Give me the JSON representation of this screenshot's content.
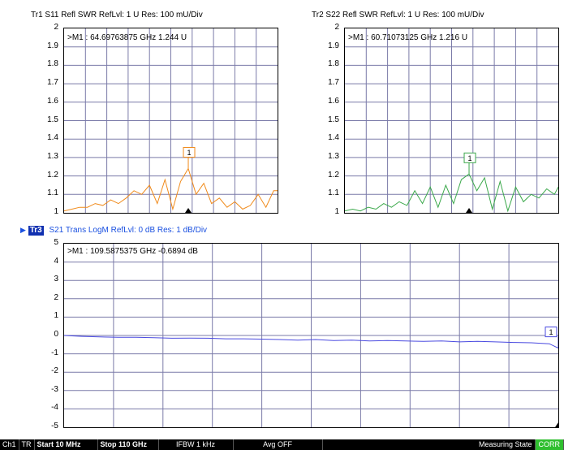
{
  "traces": {
    "tr1": {
      "title": "Tr1   S11 Refl SWR RefLvl: 1  U Res: 100 mU/Div",
      "marker": ">M1  :   64.69763875 GHz  1.244  U",
      "marker_label": "1",
      "color": "#f08a1a",
      "y_ticks": [
        "2",
        "1.9",
        "1.8",
        "1.7",
        "1.6",
        "1.5",
        "1.4",
        "1.3",
        "1.2",
        "1.1",
        "1"
      ]
    },
    "tr2": {
      "title": "Tr2   S22 Refl SWR RefLvl: 1  U Res: 100 mU/Div",
      "marker": ">M1  :   60.71073125 GHz  1.216  U",
      "marker_label": "1",
      "color": "#3aa84a",
      "y_ticks": [
        "2",
        "1.9",
        "1.8",
        "1.7",
        "1.6",
        "1.5",
        "1.4",
        "1.3",
        "1.2",
        "1.1",
        "1"
      ]
    },
    "tr3": {
      "badge": "Tr3",
      "title": "S21 Trans LogM RefLvl: 0  dB Res: 1  dB/Div",
      "marker": ">M1  :   109.5875375 GHz  -0.6894  dB",
      "marker_label": "1",
      "color": "#4a4ae0",
      "y_ticks": [
        "5",
        "4",
        "3",
        "2",
        "1",
        "0",
        "-1",
        "-2",
        "-3",
        "-4",
        "-5"
      ]
    }
  },
  "chart_data": [
    {
      "type": "line",
      "ylim": [
        1,
        2
      ],
      "x": [
        0,
        4,
        8,
        12,
        16,
        20,
        24,
        28,
        32,
        36,
        40,
        44,
        48,
        52,
        56,
        60,
        64,
        68,
        72,
        76,
        80,
        84,
        88,
        92,
        96,
        100,
        104,
        108,
        110
      ],
      "series": [
        {
          "values": [
            1.01,
            1.02,
            1.03,
            1.03,
            1.05,
            1.04,
            1.07,
            1.05,
            1.08,
            1.12,
            1.1,
            1.15,
            1.05,
            1.18,
            1.02,
            1.17,
            1.24,
            1.1,
            1.16,
            1.05,
            1.08,
            1.03,
            1.06,
            1.02,
            1.04,
            1.1,
            1.03,
            1.12,
            1.12
          ]
        }
      ]
    },
    {
      "type": "line",
      "ylim": [
        1,
        2
      ],
      "x": [
        0,
        4,
        8,
        12,
        16,
        20,
        24,
        28,
        32,
        36,
        40,
        44,
        48,
        52,
        56,
        60,
        64,
        68,
        72,
        76,
        80,
        84,
        88,
        92,
        96,
        100,
        104,
        108,
        110
      ],
      "series": [
        {
          "values": [
            1.01,
            1.02,
            1.01,
            1.03,
            1.02,
            1.05,
            1.03,
            1.06,
            1.04,
            1.12,
            1.05,
            1.14,
            1.03,
            1.15,
            1.05,
            1.18,
            1.21,
            1.12,
            1.19,
            1.02,
            1.17,
            1.01,
            1.14,
            1.06,
            1.1,
            1.08,
            1.13,
            1.1,
            1.14
          ]
        }
      ]
    },
    {
      "type": "line",
      "ylim": [
        -5,
        5
      ],
      "x": [
        0,
        4,
        8,
        12,
        16,
        20,
        24,
        28,
        32,
        36,
        40,
        44,
        48,
        52,
        56,
        60,
        64,
        68,
        72,
        76,
        80,
        84,
        88,
        92,
        96,
        100,
        104,
        108,
        110
      ],
      "series": [
        {
          "values": [
            0.0,
            -0.05,
            -0.08,
            -0.1,
            -0.1,
            -0.12,
            -0.15,
            -0.14,
            -0.15,
            -0.18,
            -0.18,
            -0.2,
            -0.22,
            -0.25,
            -0.22,
            -0.28,
            -0.25,
            -0.3,
            -0.28,
            -0.3,
            -0.32,
            -0.3,
            -0.35,
            -0.32,
            -0.35,
            -0.38,
            -0.4,
            -0.45,
            -0.69
          ]
        }
      ]
    }
  ],
  "status": {
    "ch": "Ch1",
    "tr": "TR",
    "start": "Start 10 MHz",
    "stop": "Stop 110 GHz",
    "ifbw": "IFBW 1 kHz",
    "avg": "Avg OFF",
    "state": "Measuring State",
    "corr": "CORR"
  }
}
